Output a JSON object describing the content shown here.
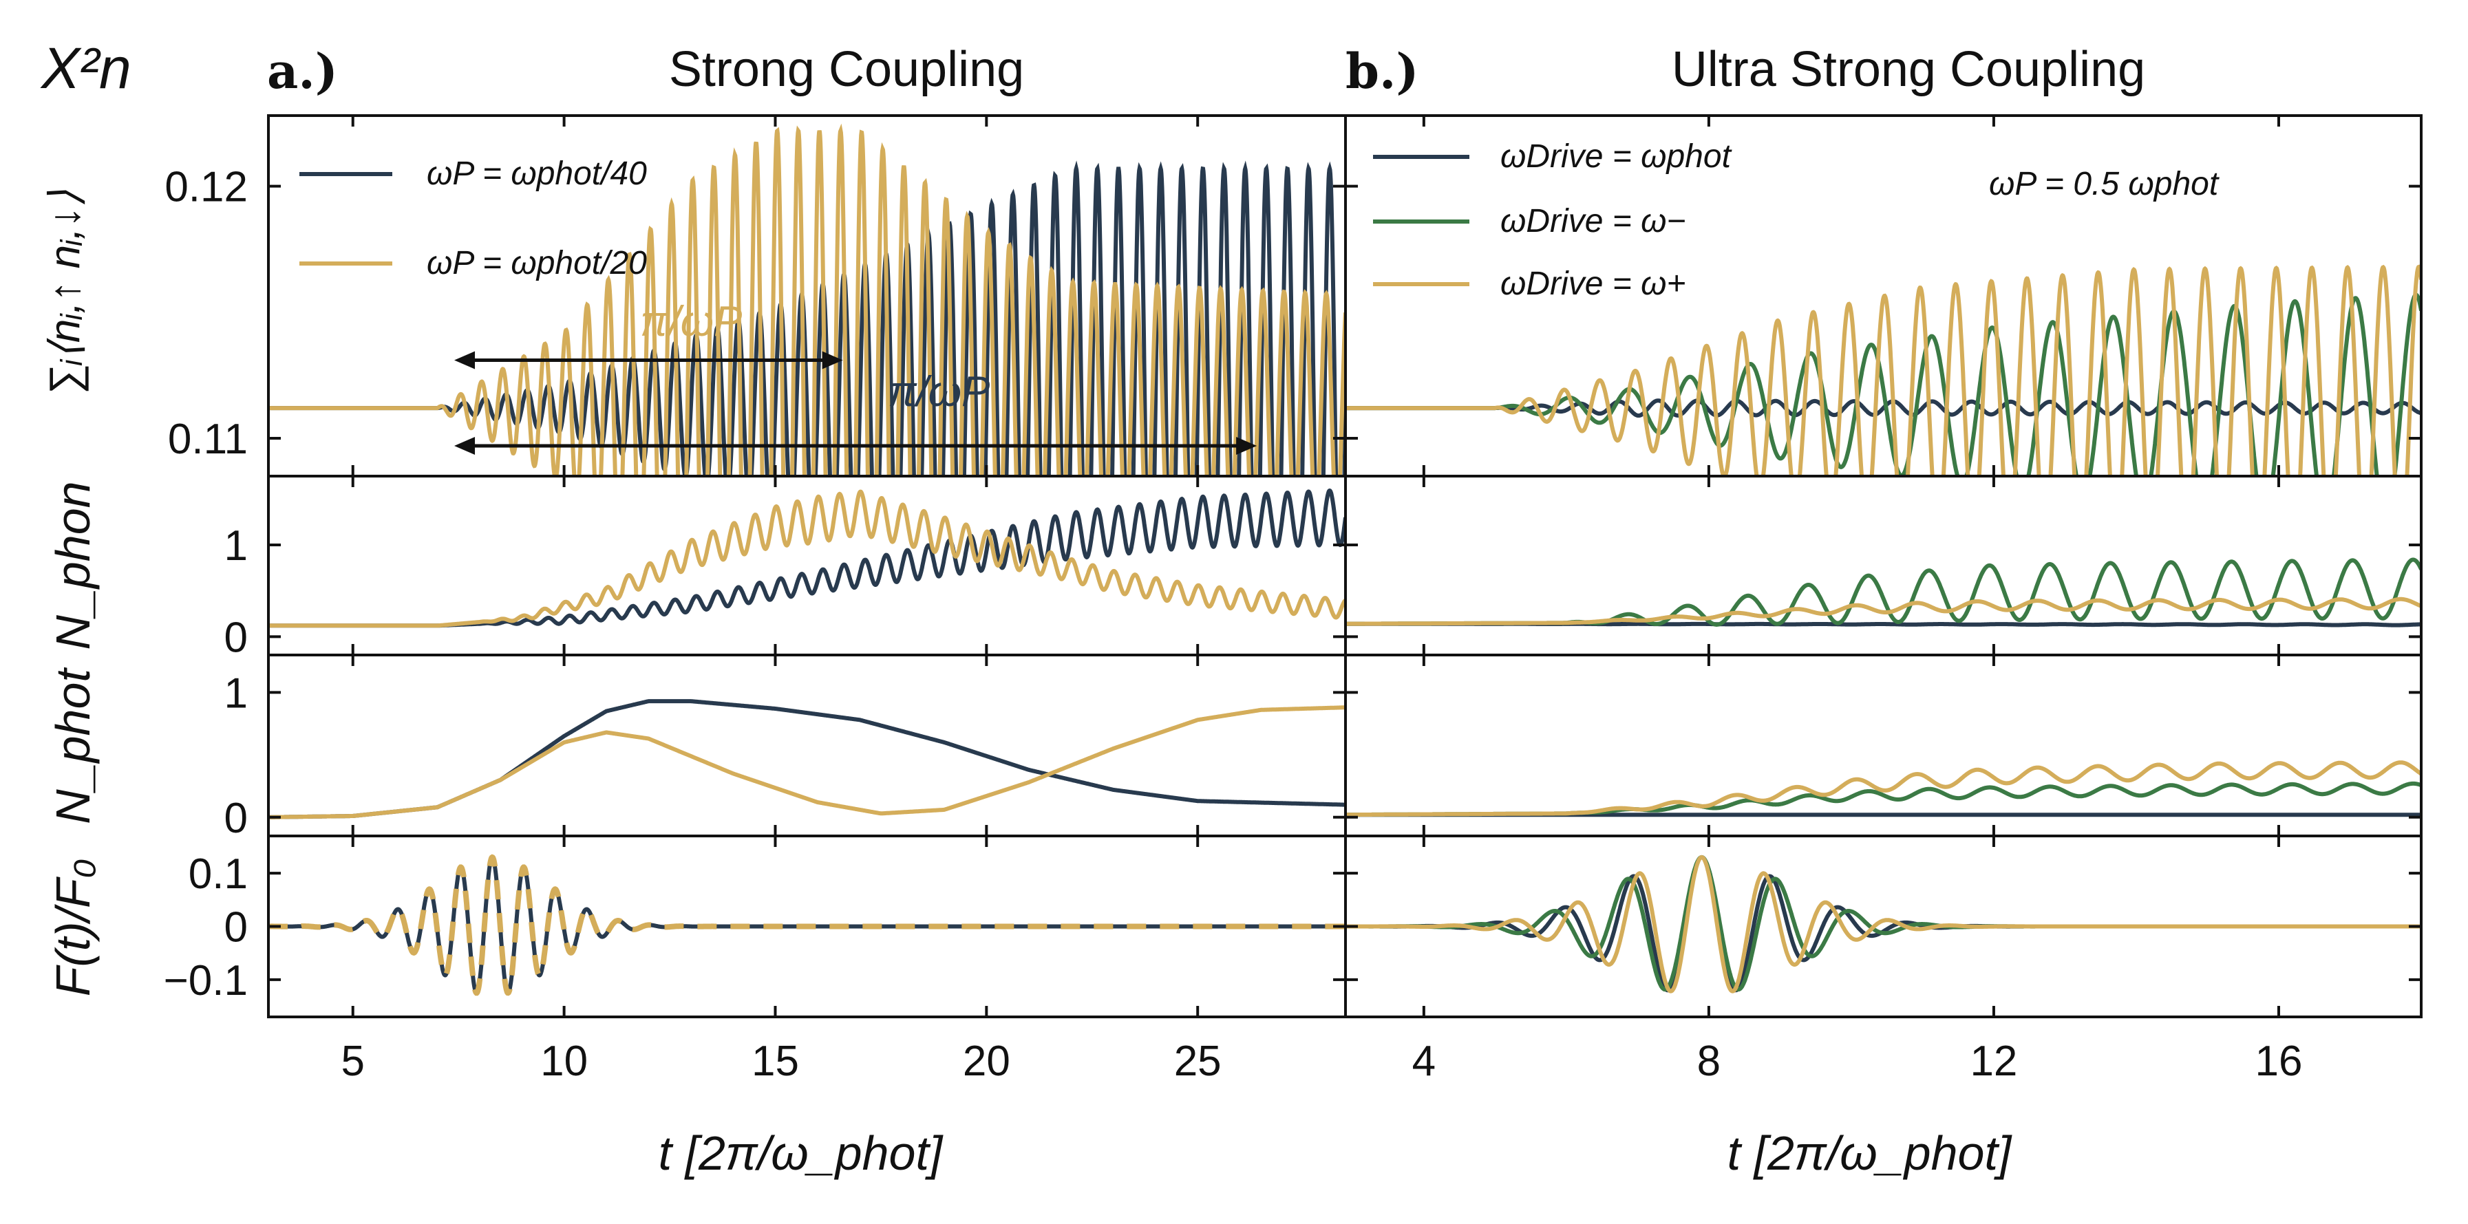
{
  "figure": {
    "corner_label": "X²n",
    "colors": {
      "navy": "#283a4e",
      "gold": "#d4ad5a",
      "green": "#3b7a45"
    },
    "panel_a": {
      "letter": "a.)",
      "title": "Strong Coupling"
    },
    "panel_b": {
      "letter": "b.)",
      "title": "Ultra Strong Coupling"
    },
    "row_labels": {
      "r0": "∑ᵢ⟨nᵢ,↑ nᵢ,↓⟩",
      "r1": "N_phon",
      "r2": "N_phot",
      "r3": "F(t)/F₀"
    },
    "xlabel": "t [2π/ω_phot]",
    "legend_a": [
      "ωP = ωphot/40",
      "ωP = ωphot/20"
    ],
    "legend_b": [
      "ωDrive = ωphot",
      "ωDrive = ω−",
      "ωDrive = ω+"
    ],
    "annotation_b": "ωP = 0.5 ωphot",
    "arrow_labels": [
      "π/ωP",
      "π/ωP"
    ]
  },
  "chart_data": [
    {
      "type": "line",
      "panel": "a",
      "row": "double_occupancy",
      "xlim": [
        3,
        28.5
      ],
      "ylim": [
        0.1085,
        0.1228
      ],
      "xticks": [
        5,
        10,
        15,
        20,
        25
      ],
      "yticks": [
        0.11,
        0.12
      ],
      "series": [
        {
          "name": "ωP = ωphot/40",
          "color": "navy",
          "baseline": 0.1112,
          "envelope": [
            [
              3,
              0
            ],
            [
              7,
              0
            ],
            [
              10,
              0.001
            ],
            [
              15,
              0.004
            ],
            [
              20,
              0.008
            ],
            [
              22,
              0.0095
            ],
            [
              28.5,
              0.0095
            ]
          ],
          "period": 0.5
        },
        {
          "name": "ωP = ωphot/20",
          "color": "gold",
          "baseline": 0.1112,
          "envelope": [
            [
              3,
              0
            ],
            [
              7,
              0
            ],
            [
              10,
              0.003
            ],
            [
              13,
              0.009
            ],
            [
              15,
              0.011
            ],
            [
              17,
              0.011
            ],
            [
              20,
              0.007
            ],
            [
              22,
              0.005
            ],
            [
              28.5,
              0.0045
            ]
          ],
          "period": 0.5
        }
      ],
      "arrows": [
        {
          "x": [
            7.4,
            16.6
          ],
          "y": 0.1131
        },
        {
          "x": [
            7.4,
            26.4
          ],
          "y": 0.1097
        }
      ]
    },
    {
      "type": "line",
      "panel": "a",
      "row": "N_phon",
      "xlim": [
        3,
        28.5
      ],
      "ylim": [
        -0.2,
        1.75
      ],
      "yticks": [
        0,
        1
      ],
      "series": [
        {
          "name": "ωP = ωphot/40",
          "color": "navy",
          "points": [
            [
              3,
              0.12
            ],
            [
              7,
              0.12
            ],
            [
              10,
              0.18
            ],
            [
              13,
              0.35
            ],
            [
              16,
              0.6
            ],
            [
              19,
              0.85
            ],
            [
              22,
              1.1
            ],
            [
              25,
              1.25
            ],
            [
              28.5,
              1.3
            ]
          ],
          "oscillation": [
            [
              3,
              0
            ],
            [
              8,
              0
            ],
            [
              10,
              0.04
            ],
            [
              16,
              0.12
            ],
            [
              22,
              0.25
            ],
            [
              28.5,
              0.3
            ]
          ]
        },
        {
          "name": "ωP = ωphot/20",
          "color": "gold",
          "points": [
            [
              3,
              0.12
            ],
            [
              7,
              0.12
            ],
            [
              9,
              0.2
            ],
            [
              11,
              0.45
            ],
            [
              13,
              0.9
            ],
            [
              15,
              1.2
            ],
            [
              17,
              1.35
            ],
            [
              19,
              1.1
            ],
            [
              21,
              0.85
            ],
            [
              23,
              0.6
            ],
            [
              25,
              0.45
            ],
            [
              28.5,
              0.3
            ]
          ],
          "oscillation": [
            [
              3,
              0
            ],
            [
              8,
              0
            ],
            [
              10,
              0.05
            ],
            [
              13,
              0.15
            ],
            [
              16,
              0.25
            ],
            [
              19,
              0.2
            ],
            [
              22,
              0.12
            ],
            [
              28.5,
              0.1
            ]
          ]
        }
      ]
    },
    {
      "type": "line",
      "panel": "a",
      "row": "N_phot",
      "xlim": [
        3,
        28.5
      ],
      "ylim": [
        -0.15,
        1.3
      ],
      "yticks": [
        0,
        1
      ],
      "series": [
        {
          "name": "ωP = ωphot/40",
          "color": "navy",
          "points": [
            [
              3,
              0
            ],
            [
              5,
              0.01
            ],
            [
              7,
              0.08
            ],
            [
              8.5,
              0.3
            ],
            [
              10,
              0.65
            ],
            [
              11,
              0.85
            ],
            [
              12,
              0.93
            ],
            [
              13,
              0.93
            ],
            [
              15,
              0.87
            ],
            [
              17,
              0.78
            ],
            [
              19,
              0.6
            ],
            [
              21,
              0.38
            ],
            [
              23,
              0.22
            ],
            [
              25,
              0.13
            ],
            [
              28.5,
              0.1
            ]
          ]
        },
        {
          "name": "ωP = ωphot/20",
          "color": "gold",
          "points": [
            [
              3,
              0
            ],
            [
              5,
              0.01
            ],
            [
              7,
              0.08
            ],
            [
              8.5,
              0.3
            ],
            [
              10,
              0.6
            ],
            [
              11,
              0.68
            ],
            [
              12,
              0.63
            ],
            [
              14,
              0.35
            ],
            [
              16,
              0.12
            ],
            [
              17.5,
              0.03
            ],
            [
              19,
              0.06
            ],
            [
              21,
              0.28
            ],
            [
              23,
              0.55
            ],
            [
              25,
              0.78
            ],
            [
              26.5,
              0.86
            ],
            [
              28.5,
              0.88
            ]
          ]
        }
      ]
    },
    {
      "type": "line",
      "panel": "a",
      "row": "force",
      "xlim": [
        3,
        28.5
      ],
      "ylim": [
        -0.17,
        0.17
      ],
      "yticks": [
        -0.1,
        0,
        0.1
      ],
      "series": [
        {
          "name": "ωP = ωphot/40",
          "color": "navy",
          "center": 8.3,
          "width": 1.9,
          "amplitude": 0.13,
          "period": 0.75
        },
        {
          "name": "ωP = ωphot/20",
          "color": "gold",
          "center": 8.3,
          "width": 1.9,
          "amplitude": 0.13,
          "period": 0.75,
          "dashed": true
        }
      ]
    },
    {
      "type": "line",
      "panel": "b",
      "row": "double_occupancy",
      "xlim": [
        2.9,
        18
      ],
      "ylim": [
        0.1085,
        0.1228
      ],
      "xticks": [
        4,
        8,
        12,
        16
      ],
      "yticks": [
        0.11,
        0.12
      ],
      "series": [
        {
          "name": "ωDrive = ωphot",
          "color": "navy",
          "baseline": 0.1112,
          "envelope": [
            [
              2.9,
              0
            ],
            [
              5,
              0
            ],
            [
              7,
              0.0003
            ],
            [
              18,
              0.0002
            ]
          ],
          "period": 0.55
        },
        {
          "name": "ωDrive = ω−",
          "color": "green",
          "baseline": 0.1112,
          "envelope": [
            [
              2.9,
              0
            ],
            [
              5,
              0
            ],
            [
              7,
              0.0008
            ],
            [
              9,
              0.002
            ],
            [
              12,
              0.0032
            ],
            [
              16,
              0.0042
            ],
            [
              18,
              0.0045
            ]
          ],
          "period": 0.85
        },
        {
          "name": "ωDrive = ω+",
          "color": "gold",
          "baseline": 0.1112,
          "envelope": [
            [
              2.9,
              0
            ],
            [
              5,
              0
            ],
            [
              7,
              0.0015
            ],
            [
              9,
              0.0035
            ],
            [
              11,
              0.0048
            ],
            [
              14,
              0.0055
            ],
            [
              18,
              0.0056
            ]
          ],
          "period": 0.5
        }
      ]
    },
    {
      "type": "line",
      "panel": "b",
      "row": "N_phon",
      "xlim": [
        2.9,
        18
      ],
      "ylim": [
        -0.2,
        1.75
      ],
      "yticks": [
        0,
        1
      ],
      "series": [
        {
          "name": "ωDrive = ωphot",
          "color": "navy",
          "points": [
            [
              2.9,
              0.14
            ],
            [
              18,
              0.13
            ]
          ],
          "oscillation": [
            [
              2.9,
              0
            ],
            [
              18,
              0.005
            ]
          ]
        },
        {
          "name": "ωDrive = ω−",
          "color": "green",
          "points": [
            [
              2.9,
              0.14
            ],
            [
              6,
              0.15
            ],
            [
              8,
              0.25
            ],
            [
              10,
              0.4
            ],
            [
              12,
              0.48
            ],
            [
              14,
              0.5
            ],
            [
              18,
              0.52
            ]
          ],
          "oscillation": [
            [
              2.9,
              0
            ],
            [
              6,
              0
            ],
            [
              8,
              0.12
            ],
            [
              10,
              0.25
            ],
            [
              12,
              0.3
            ],
            [
              18,
              0.32
            ]
          ]
        },
        {
          "name": "ωDrive = ω+",
          "color": "gold",
          "points": [
            [
              2.9,
              0.14
            ],
            [
              6,
              0.15
            ],
            [
              8,
              0.22
            ],
            [
              10,
              0.3
            ],
            [
              12,
              0.34
            ],
            [
              18,
              0.36
            ]
          ],
          "oscillation": [
            [
              2.9,
              0
            ],
            [
              6,
              0
            ],
            [
              8,
              0.02
            ],
            [
              11,
              0.05
            ],
            [
              18,
              0.05
            ]
          ]
        }
      ]
    },
    {
      "type": "line",
      "panel": "b",
      "row": "N_phot",
      "xlim": [
        2.9,
        18
      ],
      "ylim": [
        -0.15,
        1.3
      ],
      "yticks": [
        0,
        1
      ],
      "series": [
        {
          "name": "ωDrive = ωphot",
          "color": "navy",
          "points": [
            [
              2.9,
              0.02
            ],
            [
              18,
              0.02
            ]
          ],
          "oscillation": [
            [
              2.9,
              0
            ],
            [
              18,
              0
            ]
          ]
        },
        {
          "name": "ωDrive = ω−",
          "color": "green",
          "points": [
            [
              2.9,
              0.02
            ],
            [
              6,
              0.03
            ],
            [
              8,
              0.09
            ],
            [
              10,
              0.17
            ],
            [
              12,
              0.2
            ],
            [
              15,
              0.22
            ],
            [
              18,
              0.23
            ]
          ],
          "oscillation": [
            [
              2.9,
              0
            ],
            [
              6,
              0
            ],
            [
              8,
              0.02
            ],
            [
              11,
              0.04
            ],
            [
              18,
              0.04
            ]
          ]
        },
        {
          "name": "ωDrive = ω+",
          "color": "gold",
          "points": [
            [
              2.9,
              0.02
            ],
            [
              6,
              0.03
            ],
            [
              8,
              0.12
            ],
            [
              10,
              0.25
            ],
            [
              12,
              0.33
            ],
            [
              15,
              0.37
            ],
            [
              18,
              0.38
            ]
          ],
          "oscillation": [
            [
              2.9,
              0
            ],
            [
              6,
              0
            ],
            [
              8,
              0.03
            ],
            [
              11,
              0.06
            ],
            [
              18,
              0.06
            ]
          ]
        }
      ]
    },
    {
      "type": "line",
      "panel": "b",
      "row": "force",
      "xlim": [
        2.9,
        18
      ],
      "ylim": [
        -0.17,
        0.17
      ],
      "yticks": [
        -0.1,
        0,
        0.1
      ],
      "series": [
        {
          "name": "ωDrive = ωphot",
          "color": "navy",
          "center": 7.9,
          "width": 1.7,
          "amplitude": 0.13,
          "period": 0.97
        },
        {
          "name": "ωDrive = ω−",
          "color": "green",
          "center": 7.9,
          "width": 1.7,
          "amplitude": 0.13,
          "period": 1.05
        },
        {
          "name": "ωDrive = ω+",
          "color": "gold",
          "center": 7.9,
          "width": 1.7,
          "amplitude": 0.13,
          "period": 0.88
        }
      ]
    }
  ]
}
